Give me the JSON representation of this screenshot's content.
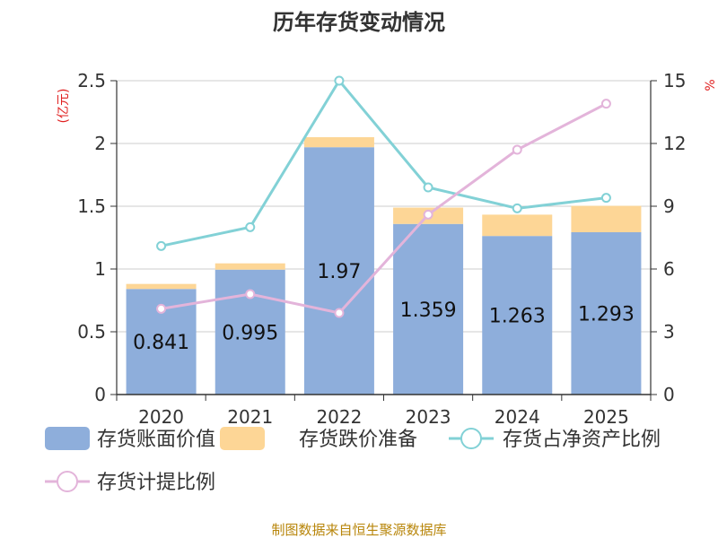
{
  "chart_data": {
    "type": "bar",
    "title": "历年存货变动情况",
    "categories": [
      "2020",
      "2021",
      "2022",
      "2023",
      "2024",
      "2025"
    ],
    "left_axis": {
      "unit_label": "(亿元)",
      "ylim": [
        0,
        2.5
      ],
      "ticks": [
        "0",
        "0.5",
        "1",
        "1.5",
        "2",
        "2.5"
      ],
      "tick_values": [
        0,
        0.5,
        1,
        1.5,
        2,
        2.5
      ]
    },
    "right_axis": {
      "unit_label": "%",
      "ylim": [
        0,
        15
      ],
      "ticks": [
        "0",
        "3",
        "6",
        "9",
        "12",
        "15"
      ],
      "tick_values": [
        0,
        3,
        6,
        9,
        12,
        15
      ]
    },
    "grid": true,
    "series": [
      {
        "name": "存货账面价值",
        "kind": "bar",
        "stack": "inv",
        "axis": "left",
        "color": "#8eaedb",
        "values": [
          0.841,
          0.995,
          1.97,
          1.359,
          1.263,
          1.293
        ],
        "labels": [
          "0.841",
          "0.995",
          "1.97",
          "1.359",
          "1.263",
          "1.293"
        ]
      },
      {
        "name": "存货跌价准备",
        "kind": "bar",
        "stack": "inv",
        "axis": "left",
        "color": "#fdd696",
        "values": [
          0.04,
          0.05,
          0.08,
          0.13,
          0.17,
          0.21
        ]
      },
      {
        "name": "存货占净资产比例",
        "kind": "line",
        "axis": "right",
        "color": "#82d1d6",
        "values": [
          7.1,
          8.0,
          15.0,
          9.9,
          8.9,
          9.4
        ]
      },
      {
        "name": "存货计提比例",
        "kind": "line",
        "axis": "right",
        "color": "#e3b4da",
        "values": [
          4.1,
          4.8,
          3.9,
          8.6,
          11.7,
          13.9
        ]
      }
    ],
    "legend": {
      "position": "bottom",
      "items": [
        "存货账面价值",
        "存货跌价准备",
        "存货占净资产比例",
        "存货计提比例"
      ]
    },
    "source": "制图数据来自恒生聚源数据库"
  }
}
